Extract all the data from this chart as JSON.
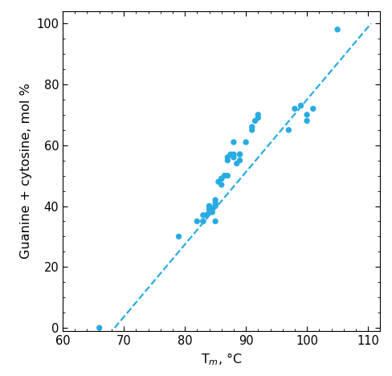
{
  "scatter_x": [
    66,
    79,
    82,
    83,
    83,
    83,
    83.5,
    84,
    84,
    84,
    84,
    84.5,
    84.5,
    85,
    85,
    85,
    85,
    85.5,
    86,
    86,
    86,
    86.5,
    87,
    87,
    87,
    87.5,
    88,
    88,
    88,
    88.5,
    89,
    89,
    89,
    90,
    91,
    91,
    91.5,
    92,
    92,
    97,
    98,
    99,
    100,
    100,
    101,
    105
  ],
  "scatter_y": [
    0,
    30,
    35,
    35,
    35,
    37,
    37,
    38,
    39,
    40,
    40,
    38,
    39,
    35,
    40,
    41,
    42,
    48,
    47,
    49,
    49,
    50,
    50,
    55,
    56,
    57,
    56,
    57,
    61,
    54,
    55,
    57,
    57,
    61,
    65,
    66,
    68,
    69,
    70,
    65,
    72,
    73,
    68,
    70,
    72,
    98
  ],
  "line_x": [
    68.5,
    110.5
  ],
  "line_y": [
    0,
    100
  ],
  "dot_color": "#29ABE2",
  "line_color": "#29ABE2",
  "xlabel": "T$_m$, °C",
  "ylabel": "Guanine + cytosine, mol %",
  "xlim": [
    60,
    112
  ],
  "ylim": [
    -1,
    104
  ],
  "xticks": [
    60,
    70,
    80,
    90,
    100,
    110
  ],
  "yticks": [
    0,
    20,
    40,
    60,
    80,
    100
  ],
  "dot_size": 28,
  "linewidth": 1.6,
  "tick_label_fontsize": 10.5,
  "axis_label_fontsize": 11.5
}
